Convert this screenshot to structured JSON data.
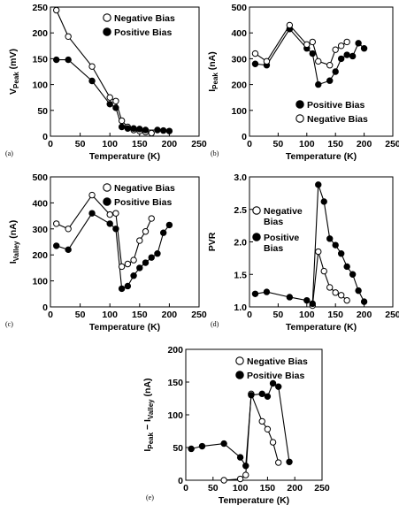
{
  "chart_data": [
    {
      "type": "scatter",
      "panel_label": "(a)",
      "xlabel": "Temperature (K)",
      "ylabel": "V",
      "ylabel_sub": "Peak",
      "ylabel_unit": " (mV)",
      "xlim": [
        0,
        250
      ],
      "ylim": [
        0,
        250
      ],
      "xticks": [
        "0",
        "50",
        "100",
        "150",
        "200",
        "250"
      ],
      "yticks": [
        "0",
        "50",
        "100",
        "150",
        "200",
        "250"
      ],
      "legend_placement": "top-right",
      "series": [
        {
          "name": "Negative Bias",
          "marker": "open",
          "points": [
            [
              10,
              244
            ],
            [
              30,
              193
            ],
            [
              70,
              135
            ],
            [
              100,
              75
            ],
            [
              110,
              68
            ],
            [
              120,
              30
            ],
            [
              130,
              18
            ],
            [
              140,
              12
            ],
            [
              150,
              10
            ],
            [
              160,
              8
            ],
            [
              170,
              6
            ]
          ]
        },
        {
          "name": "Positive Bias",
          "marker": "filled",
          "points": [
            [
              10,
              148
            ],
            [
              30,
              148
            ],
            [
              70,
              107
            ],
            [
              100,
              62
            ],
            [
              110,
              55
            ],
            [
              120,
              18
            ],
            [
              130,
              15
            ],
            [
              140,
              15
            ],
            [
              150,
              14
            ],
            [
              160,
              12
            ],
            [
              180,
              12
            ],
            [
              190,
              11
            ],
            [
              200,
              10
            ]
          ]
        }
      ]
    },
    {
      "type": "scatter",
      "panel_label": "(b)",
      "xlabel": "Temperature (K)",
      "ylabel": "I",
      "ylabel_sub": "Peak",
      "ylabel_unit": " (nA)",
      "xlim": [
        0,
        250
      ],
      "ylim": [
        0,
        500
      ],
      "xticks": [
        "0",
        "50",
        "100",
        "150",
        "200",
        "250"
      ],
      "yticks": [
        "0",
        "100",
        "200",
        "300",
        "400",
        "500"
      ],
      "legend_placement": "bottom-right",
      "series": [
        {
          "name": "Positive Bias",
          "marker": "filled",
          "points": [
            [
              10,
              280
            ],
            [
              30,
              275
            ],
            [
              70,
              415
            ],
            [
              100,
              340
            ],
            [
              110,
              320
            ],
            [
              120,
              200
            ],
            [
              140,
              215
            ],
            [
              150,
              250
            ],
            [
              160,
              300
            ],
            [
              170,
              315
            ],
            [
              180,
              310
            ],
            [
              190,
              360
            ],
            [
              200,
              340
            ]
          ]
        },
        {
          "name": "Negative Bias",
          "marker": "open",
          "points": [
            [
              10,
              320
            ],
            [
              30,
              290
            ],
            [
              70,
              430
            ],
            [
              100,
              355
            ],
            [
              110,
              365
            ],
            [
              120,
              290
            ],
            [
              140,
              275
            ],
            [
              150,
              335
            ],
            [
              160,
              350
            ],
            [
              170,
              365
            ]
          ]
        }
      ]
    },
    {
      "type": "scatter",
      "panel_label": "(c)",
      "xlabel": "Temperature (K)",
      "ylabel": "I",
      "ylabel_sub": "Valley",
      "ylabel_unit": " (nA)",
      "xlim": [
        0,
        250
      ],
      "ylim": [
        0,
        500
      ],
      "xticks": [
        "0",
        "50",
        "100",
        "150",
        "200",
        "250"
      ],
      "yticks": [
        "0",
        "100",
        "200",
        "300",
        "400",
        "500"
      ],
      "legend_placement": "top-right",
      "series": [
        {
          "name": "Negative Bias",
          "marker": "open",
          "points": [
            [
              10,
              320
            ],
            [
              30,
              300
            ],
            [
              70,
              430
            ],
            [
              100,
              355
            ],
            [
              110,
              360
            ],
            [
              120,
              155
            ],
            [
              130,
              165
            ],
            [
              140,
              180
            ],
            [
              150,
              255
            ],
            [
              160,
              290
            ],
            [
              170,
              340
            ]
          ]
        },
        {
          "name": "Positive Bias",
          "marker": "filled",
          "points": [
            [
              10,
              235
            ],
            [
              30,
              220
            ],
            [
              70,
              360
            ],
            [
              100,
              320
            ],
            [
              110,
              300
            ],
            [
              120,
              70
            ],
            [
              130,
              80
            ],
            [
              140,
              120
            ],
            [
              150,
              150
            ],
            [
              160,
              170
            ],
            [
              170,
              190
            ],
            [
              180,
              205
            ],
            [
              190,
              285
            ],
            [
              200,
              315
            ]
          ]
        }
      ]
    },
    {
      "type": "scatter",
      "panel_label": "(d)",
      "xlabel": "Temperature (K)",
      "ylabel": "PVR",
      "ylabel_sub": "",
      "ylabel_unit": "",
      "xlim": [
        0,
        250
      ],
      "ylim": [
        1.0,
        3.0
      ],
      "xticks": [
        "0",
        "50",
        "100",
        "150",
        "200",
        "250"
      ],
      "yticks": [
        "1.0",
        "1.5",
        "2.0",
        "2.5",
        "3.0"
      ],
      "legend_placement": "top-left",
      "series": [
        {
          "name": "Negative Bias",
          "marker": "open",
          "points": [
            [
              110,
              1.02
            ],
            [
              120,
              1.85
            ],
            [
              130,
              1.55
            ],
            [
              140,
              1.3
            ],
            [
              150,
              1.22
            ],
            [
              160,
              1.18
            ],
            [
              170,
              1.1
            ]
          ]
        },
        {
          "name": "Positive Bias",
          "marker": "filled",
          "points": [
            [
              10,
              1.2
            ],
            [
              30,
              1.23
            ],
            [
              70,
              1.15
            ],
            [
              100,
              1.1
            ],
            [
              110,
              1.05
            ],
            [
              120,
              2.88
            ],
            [
              130,
              2.62
            ],
            [
              140,
              2.05
            ],
            [
              150,
              1.95
            ],
            [
              160,
              1.82
            ],
            [
              170,
              1.62
            ],
            [
              180,
              1.5
            ],
            [
              190,
              1.25
            ],
            [
              200,
              1.08
            ]
          ]
        }
      ]
    },
    {
      "type": "scatter",
      "panel_label": "(e)",
      "xlabel": "Temperature (K)",
      "ylabel": "I",
      "ylabel_sub": "Peak",
      "ylabel_mid": " − I",
      "ylabel_sub2": "Valley",
      "ylabel_unit": " (nA)",
      "xlim": [
        0,
        250
      ],
      "ylim": [
        0,
        200
      ],
      "xticks": [
        "0",
        "50",
        "100",
        "150",
        "200",
        "250"
      ],
      "yticks": [
        "0",
        "50",
        "100",
        "150",
        "200"
      ],
      "legend_placement": "top-right",
      "series": [
        {
          "name": "Negative Bias",
          "marker": "open",
          "points": [
            [
              70,
              0
            ],
            [
              100,
              2
            ],
            [
              110,
              8
            ],
            [
              120,
              132
            ],
            [
              140,
              90
            ],
            [
              150,
              78
            ],
            [
              160,
              58
            ],
            [
              170,
              27
            ]
          ]
        },
        {
          "name": "Positive Bias",
          "marker": "filled",
          "points": [
            [
              10,
              48
            ],
            [
              30,
              52
            ],
            [
              70,
              56
            ],
            [
              100,
              35
            ],
            [
              110,
              22
            ],
            [
              120,
              130
            ],
            [
              140,
              132
            ],
            [
              150,
              128
            ],
            [
              160,
              148
            ],
            [
              170,
              143
            ],
            [
              190,
              28
            ]
          ]
        }
      ]
    }
  ]
}
